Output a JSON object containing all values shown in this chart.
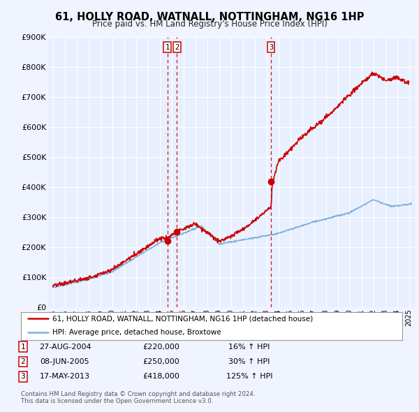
{
  "title": "61, HOLLY ROAD, WATNALL, NOTTINGHAM, NG16 1HP",
  "subtitle": "Price paid vs. HM Land Registry's House Price Index (HPI)",
  "hpi_label": "HPI: Average price, detached house, Broxtowe",
  "price_label": "61, HOLLY ROAD, WATNALL, NOTTINGHAM, NG16 1HP (detached house)",
  "ylim": [
    0,
    900000
  ],
  "yticks": [
    0,
    100000,
    200000,
    300000,
    400000,
    500000,
    600000,
    700000,
    800000,
    900000
  ],
  "ytick_labels": [
    "£0",
    "£100K",
    "£200K",
    "£300K",
    "£400K",
    "£500K",
    "£600K",
    "£700K",
    "£800K",
    "£900K"
  ],
  "xlim_start": 1994.6,
  "xlim_end": 2025.5,
  "background_color": "#f0f4ff",
  "plot_bg_color": "#e8f0ff",
  "grid_color": "#ffffff",
  "hpi_color": "#7aaddd",
  "price_color": "#cc0000",
  "vline_color": "#cc0000",
  "transactions": [
    {
      "label": "1",
      "date_num": 2004.65,
      "price": 220000,
      "pct": "16%",
      "date_str": "27-AUG-2004",
      "price_str": "£220,000"
    },
    {
      "label": "2",
      "date_num": 2005.44,
      "price": 250000,
      "pct": "30%",
      "date_str": "08-JUN-2005",
      "price_str": "£250,000"
    },
    {
      "label": "3",
      "date_num": 2013.38,
      "price": 418000,
      "pct": "125%",
      "date_str": "17-MAY-2013",
      "price_str": "£418,000"
    }
  ],
  "footer_line1": "Contains HM Land Registry data © Crown copyright and database right 2024.",
  "footer_line2": "This data is licensed under the Open Government Licence v3.0."
}
